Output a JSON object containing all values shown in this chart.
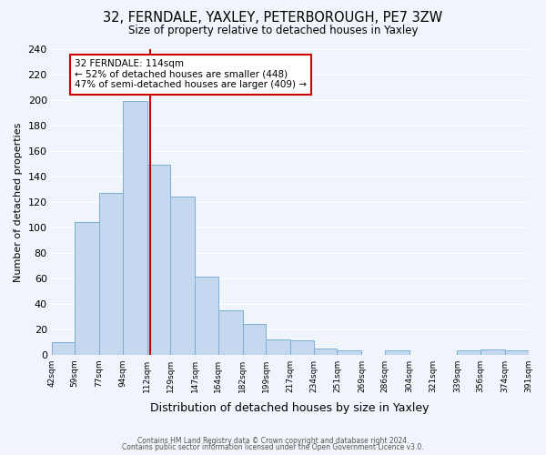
{
  "title": "32, FERNDALE, YAXLEY, PETERBOROUGH, PE7 3ZW",
  "subtitle": "Size of property relative to detached houses in Yaxley",
  "xlabel": "Distribution of detached houses by size in Yaxley",
  "ylabel": "Number of detached properties",
  "bar_labels": [
    "42sqm",
    "59sqm",
    "77sqm",
    "94sqm",
    "112sqm",
    "129sqm",
    "147sqm",
    "164sqm",
    "182sqm",
    "199sqm",
    "217sqm",
    "234sqm",
    "251sqm",
    "269sqm",
    "286sqm",
    "304sqm",
    "321sqm",
    "339sqm",
    "356sqm",
    "374sqm"
  ],
  "bar_values": [
    10,
    104,
    127,
    199,
    149,
    124,
    61,
    35,
    24,
    12,
    11,
    5,
    3,
    0,
    3,
    0,
    0,
    3,
    4,
    3
  ],
  "bar_edges": [
    42,
    59,
    77,
    94,
    112,
    129,
    147,
    164,
    182,
    199,
    217,
    234,
    251,
    269,
    286,
    304,
    321,
    339,
    356,
    374,
    391
  ],
  "bar_color": "#c5d8f0",
  "bar_edge_color": "#7bafd4",
  "property_value": 114,
  "property_line_color": "#cc0000",
  "annotation_line1": "32 FERNDALE: 114sqm",
  "annotation_line2": "← 52% of detached houses are smaller (448)",
  "annotation_line3": "47% of semi-detached houses are larger (409) →",
  "annotation_box_color": "#ffffff",
  "annotation_box_edge": "#cc0000",
  "ylim": [
    0,
    240
  ],
  "yticks": [
    0,
    20,
    40,
    60,
    80,
    100,
    120,
    140,
    160,
    180,
    200,
    220,
    240
  ],
  "footer1": "Contains HM Land Registry data © Crown copyright and database right 2024.",
  "footer2": "Contains public sector information licensed under the Open Government Licence v3.0.",
  "bg_color": "#f0f4fb",
  "last_label": "391sqm"
}
